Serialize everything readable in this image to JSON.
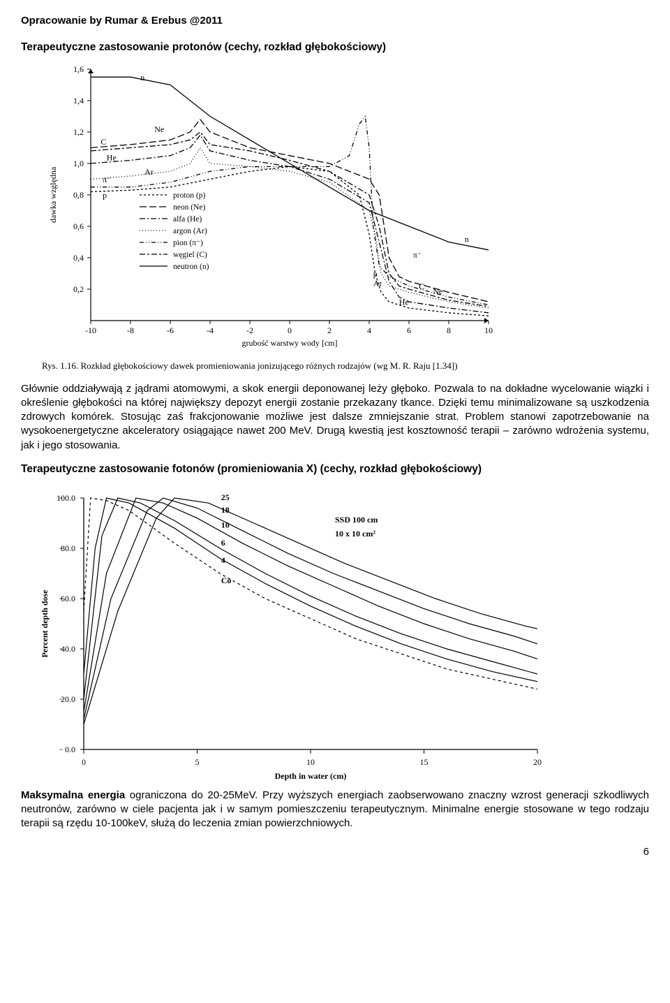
{
  "header": "Opracowanie by Rumar & Erebus @2011",
  "section1_title": "Terapeutyczne zastosowanie protonów (cechy, rozkład głębokościowy)",
  "fig1": {
    "type": "line",
    "xlabel": "grubość warstwy wody [cm]",
    "ylabel": "dawka względna",
    "xlim": [
      -10,
      10
    ],
    "xtick_step": 2,
    "ylim": [
      0,
      1.6
    ],
    "ytick_step": 0.2,
    "grid_color": "#ffffff",
    "axis_color": "#000000",
    "background_color": "#ffffff",
    "line_width": 1.3,
    "legend_items": [
      {
        "label": "proton (p)",
        "dash": "3,3"
      },
      {
        "label": "neon (Ne)",
        "dash": "10,4"
      },
      {
        "label": "alfa (He)",
        "dash": "8,3,2,3"
      },
      {
        "label": "argon (Ar)",
        "dash": "1,3"
      },
      {
        "label": "pion (π⁻)",
        "dash": "6,3,1,3,1,3"
      },
      {
        "label": "węgiel (C)",
        "dash": "8,3,3,3"
      },
      {
        "label": "neutron (n)",
        "dash": "none"
      }
    ],
    "curve_annotations": [
      "C",
      "He",
      "Ne",
      "π⁻",
      "p",
      "Ar",
      "n",
      "n",
      "π⁻",
      "p",
      "Ar",
      "He",
      "C",
      "Ne"
    ],
    "series": {
      "n": [
        [
          -10,
          1.55
        ],
        [
          -9,
          1.55
        ],
        [
          -8,
          1.55
        ],
        [
          -6,
          1.5
        ],
        [
          -4,
          1.3
        ],
        [
          -2,
          1.15
        ],
        [
          0,
          1.0
        ],
        [
          2,
          0.85
        ],
        [
          4,
          0.7
        ],
        [
          6,
          0.6
        ],
        [
          8,
          0.5
        ],
        [
          10,
          0.45
        ]
      ],
      "Ne": [
        [
          -10,
          1.1
        ],
        [
          -8,
          1.12
        ],
        [
          -6,
          1.15
        ],
        [
          -5,
          1.2
        ],
        [
          -4.5,
          1.28
        ],
        [
          -4,
          1.2
        ],
        [
          -2,
          1.1
        ],
        [
          0,
          1.05
        ],
        [
          2,
          1.0
        ],
        [
          4,
          0.9
        ],
        [
          4.5,
          0.8
        ],
        [
          5,
          0.4
        ],
        [
          5.5,
          0.28
        ],
        [
          6,
          0.25
        ],
        [
          8,
          0.18
        ],
        [
          10,
          0.12
        ]
      ],
      "C": [
        [
          -10,
          1.08
        ],
        [
          -8,
          1.1
        ],
        [
          -6,
          1.12
        ],
        [
          -5,
          1.15
        ],
        [
          -4.5,
          1.2
        ],
        [
          -4,
          1.12
        ],
        [
          -2,
          1.08
        ],
        [
          0,
          1.02
        ],
        [
          2,
          0.95
        ],
        [
          4,
          0.8
        ],
        [
          4.5,
          0.6
        ],
        [
          5,
          0.3
        ],
        [
          5.5,
          0.22
        ],
        [
          6,
          0.2
        ],
        [
          8,
          0.13
        ],
        [
          10,
          0.09
        ]
      ],
      "He": [
        [
          -10,
          1.0
        ],
        [
          -8,
          1.02
        ],
        [
          -6,
          1.05
        ],
        [
          -5,
          1.1
        ],
        [
          -4.5,
          1.18
        ],
        [
          -4,
          1.08
        ],
        [
          -2,
          1.02
        ],
        [
          0,
          0.98
        ],
        [
          2,
          0.9
        ],
        [
          4,
          0.75
        ],
        [
          4.5,
          0.5
        ],
        [
          5,
          0.25
        ],
        [
          5.5,
          0.15
        ],
        [
          6,
          0.12
        ],
        [
          8,
          0.08
        ],
        [
          10,
          0.05
        ]
      ],
      "Ar": [
        [
          -10,
          0.9
        ],
        [
          -8,
          0.92
        ],
        [
          -6,
          0.95
        ],
        [
          -5,
          1.0
        ],
        [
          -4.5,
          1.1
        ],
        [
          -4,
          1.0
        ],
        [
          -2,
          0.98
        ],
        [
          0,
          0.95
        ],
        [
          2,
          0.88
        ],
        [
          4,
          0.7
        ],
        [
          4.3,
          0.55
        ],
        [
          4.6,
          0.3
        ],
        [
          5,
          0.22
        ],
        [
          6,
          0.18
        ],
        [
          8,
          0.12
        ],
        [
          10,
          0.08
        ]
      ],
      "pi": [
        [
          -10,
          0.85
        ],
        [
          -8,
          0.85
        ],
        [
          -6,
          0.88
        ],
        [
          -4,
          0.95
        ],
        [
          -2,
          0.98
        ],
        [
          0,
          0.98
        ],
        [
          2,
          0.98
        ],
        [
          3,
          1.05
        ],
        [
          3.5,
          1.25
        ],
        [
          3.8,
          1.3
        ],
        [
          4,
          1.1
        ],
        [
          4.2,
          0.6
        ],
        [
          4.5,
          0.35
        ],
        [
          5,
          0.28
        ],
        [
          6,
          0.22
        ],
        [
          8,
          0.15
        ],
        [
          10,
          0.1
        ]
      ],
      "p": [
        [
          -10,
          0.82
        ],
        [
          -8,
          0.83
        ],
        [
          -6,
          0.85
        ],
        [
          -4,
          0.9
        ],
        [
          -2,
          0.95
        ],
        [
          0,
          0.98
        ],
        [
          2,
          0.95
        ],
        [
          3.5,
          0.8
        ],
        [
          4,
          0.55
        ],
        [
          4.3,
          0.3
        ],
        [
          4.6,
          0.18
        ],
        [
          5,
          0.12
        ],
        [
          6,
          0.08
        ],
        [
          8,
          0.05
        ],
        [
          10,
          0.03
        ]
      ]
    },
    "caption": "Rys. 1.16. Rozkład głębokościowy dawek promieniowania jonizującego różnych rodzajów (wg M. R. Raju [1.34])"
  },
  "para1": "Głównie oddziaływają z jądrami atomowymi, a skok energii deponowanej leży głęboko. Pozwala to na dokładne wycelowanie wiązki i określenie głębokości na której największy depozyt energii zostanie przekazany tkance. Dzięki temu minimalizowane są uszkodzenia zdrowych komórek. Stosując zaś frakcjonowanie możliwe jest dalsze zmniejszanie strat. Problem stanowi zapotrzebowanie na wysokoenergetyczne akceleratory osiągające nawet 200 MeV. Drugą kwestią jest kosztowność terapii – zarówno wdrożenia systemu, jak i jego stosowania.",
  "section2_title": "Terapeutyczne zastosowanie fotonów (promieniowania X) (cechy, rozkład głębokościowy)",
  "fig2": {
    "type": "line",
    "xlabel": "Depth in water (cm)",
    "ylabel": "Percent depth dose",
    "xlim": [
      0,
      20
    ],
    "xtick_step": 5,
    "ylim": [
      0,
      100
    ],
    "ytick_step": 20,
    "axis_color": "#000000",
    "background_color": "#ffffff",
    "line_width": 1.2,
    "info_text": [
      "SSD 100 cm",
      "10 x 10 cm²"
    ],
    "curve_labels": [
      "25",
      "18",
      "10",
      "6",
      "4",
      "Co"
    ],
    "series": {
      "Co": [
        [
          0,
          55
        ],
        [
          0.3,
          100
        ],
        [
          1,
          99
        ],
        [
          2,
          95
        ],
        [
          4,
          82
        ],
        [
          6,
          70
        ],
        [
          8,
          60
        ],
        [
          10,
          52
        ],
        [
          12,
          44
        ],
        [
          14,
          38
        ],
        [
          16,
          32
        ],
        [
          18,
          28
        ],
        [
          20,
          24
        ]
      ],
      "4": [
        [
          0,
          30
        ],
        [
          0.5,
          80
        ],
        [
          1,
          100
        ],
        [
          2,
          98
        ],
        [
          4,
          88
        ],
        [
          6,
          76
        ],
        [
          8,
          66
        ],
        [
          10,
          57
        ],
        [
          12,
          49
        ],
        [
          14,
          42
        ],
        [
          16,
          36
        ],
        [
          18,
          31
        ],
        [
          20,
          27
        ]
      ],
      "6": [
        [
          0,
          20
        ],
        [
          0.8,
          85
        ],
        [
          1.5,
          100
        ],
        [
          2.5,
          98
        ],
        [
          4,
          91
        ],
        [
          6,
          80
        ],
        [
          8,
          70
        ],
        [
          10,
          61
        ],
        [
          12,
          53
        ],
        [
          14,
          46
        ],
        [
          16,
          40
        ],
        [
          18,
          35
        ],
        [
          20,
          30
        ]
      ],
      "10": [
        [
          0,
          15
        ],
        [
          1,
          70
        ],
        [
          2.3,
          100
        ],
        [
          3.5,
          98
        ],
        [
          5,
          92
        ],
        [
          7,
          82
        ],
        [
          9,
          73
        ],
        [
          11,
          65
        ],
        [
          13,
          57
        ],
        [
          15,
          50
        ],
        [
          17,
          44
        ],
        [
          19,
          39
        ],
        [
          20,
          36
        ]
      ],
      "18": [
        [
          0,
          12
        ],
        [
          1.2,
          60
        ],
        [
          2.8,
          95
        ],
        [
          3.5,
          100
        ],
        [
          5,
          96
        ],
        [
          7,
          87
        ],
        [
          9,
          78
        ],
        [
          11,
          70
        ],
        [
          13,
          63
        ],
        [
          15,
          56
        ],
        [
          17,
          50
        ],
        [
          19,
          45
        ],
        [
          20,
          42
        ]
      ],
      "25": [
        [
          0,
          10
        ],
        [
          1.5,
          55
        ],
        [
          3.2,
          92
        ],
        [
          4,
          100
        ],
        [
          5.5,
          98
        ],
        [
          7.5,
          90
        ],
        [
          9.5,
          82
        ],
        [
          11.5,
          74
        ],
        [
          13.5,
          67
        ],
        [
          15.5,
          60
        ],
        [
          17.5,
          54
        ],
        [
          19.5,
          49
        ],
        [
          20,
          48
        ]
      ]
    }
  },
  "para2": "Maksymalna energia ograniczona do 20-25MeV. Przy wyższych energiach zaobserwowano znaczny wzrost generacji szkodliwych neutronów, zarówno w ciele pacjenta jak i w samym pomieszczeniu terapeutycznym. Minimalne energie stosowane w tego rodzaju terapii są rzędu 10-100keV, służą do leczenia zmian powierzchniowych.",
  "para2_bold": "Maksymalna energia",
  "page_number": "6"
}
